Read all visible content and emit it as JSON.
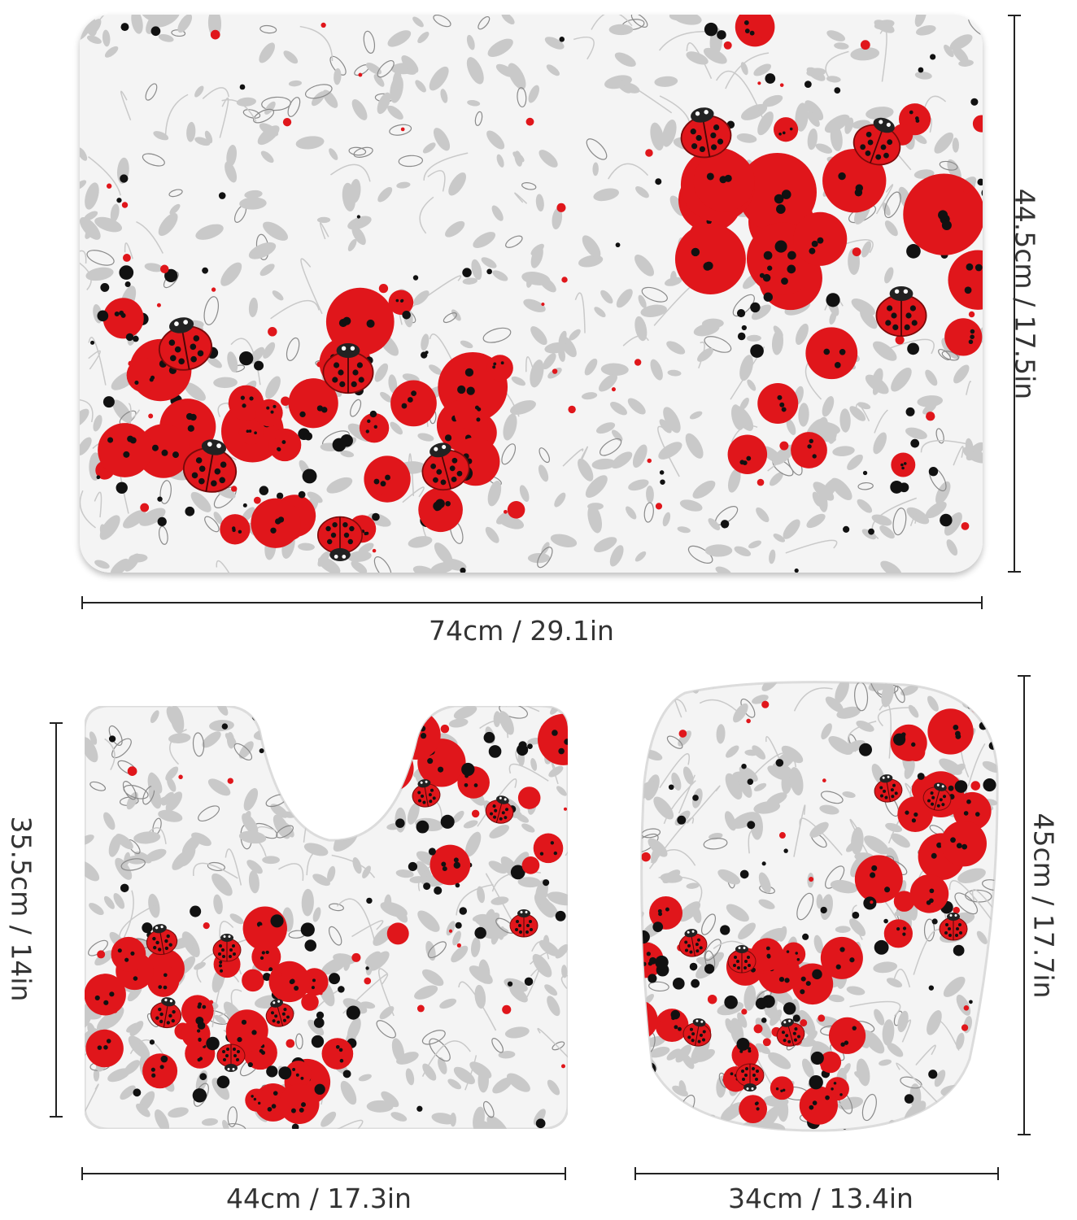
{
  "product": {
    "pattern": "ladybug-red-dots-grey-leaves",
    "colors": {
      "red": "#e0161b",
      "black": "#111111",
      "leaf": "#c9c9c9",
      "leaf_dark": "#8a8a8a",
      "mat_bg": "#f4f4f4"
    }
  },
  "dimensions": {
    "bath_mat_width": "74cm / 29.1in",
    "bath_mat_height": "44.5cm / 17.5in",
    "contour_width": "44cm / 17.3in",
    "contour_height": "35.5cm / 14in",
    "lid_width": "34cm / 13.4in",
    "lid_height": "45cm / 17.7in"
  }
}
